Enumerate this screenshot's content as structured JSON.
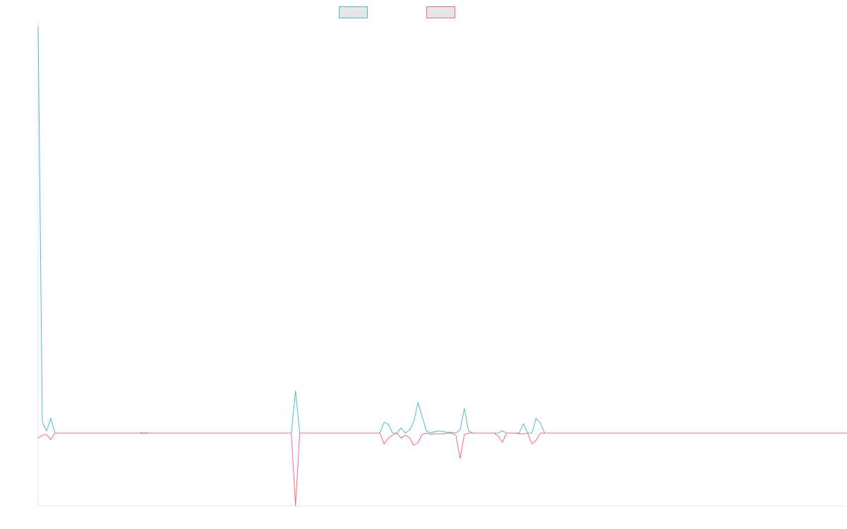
{
  "chart_data": {
    "type": "line",
    "title": "",
    "xlabel": "",
    "ylabel": "",
    "x_count": 192,
    "ylim": [
      -1.0,
      5.6
    ],
    "grid": false,
    "legend_position": "top",
    "series": [
      {
        "name": "",
        "color": "#4bc0c0",
        "fill": "#e6e6e6",
        "values": [
          5.6,
          0.15,
          0.03,
          0.2,
          0,
          0,
          0,
          0,
          0,
          0,
          0,
          0,
          0,
          0,
          0,
          0,
          0,
          0,
          0,
          0,
          0,
          0,
          0,
          0,
          0,
          0.01,
          0,
          0,
          0,
          0,
          0,
          0,
          0,
          0,
          0,
          0,
          0,
          0,
          0,
          0,
          0,
          0,
          0,
          0,
          0,
          0,
          0,
          0,
          0,
          0,
          0,
          0,
          0,
          0,
          0,
          0,
          0,
          0,
          0,
          0,
          0,
          0.58,
          0,
          0,
          0,
          0,
          0,
          0,
          0,
          0,
          0,
          0,
          0,
          0,
          0,
          0,
          0,
          0,
          0,
          0,
          0,
          0,
          0.15,
          0.12,
          0,
          0,
          0.07,
          0,
          0.04,
          0.15,
          0.42,
          0.23,
          0.03,
          0,
          0.02,
          0.03,
          0.02,
          0.01,
          0.01,
          0,
          0.04,
          0.34,
          0.03,
          0,
          0,
          0,
          0,
          0,
          0,
          0,
          0.03,
          0,
          0,
          0,
          0,
          0.13,
          0,
          0,
          0.2,
          0.14,
          0,
          0,
          0,
          0,
          0,
          0,
          0,
          0,
          0,
          0,
          0,
          0,
          0,
          0,
          0,
          0,
          0,
          0,
          0,
          0,
          0,
          0,
          0,
          0,
          0,
          0,
          0,
          0,
          0,
          0,
          0,
          0,
          0,
          0,
          0,
          0,
          0,
          0,
          0,
          0,
          0,
          0,
          0,
          0,
          0,
          0,
          0,
          0,
          0,
          0,
          0,
          0,
          0,
          0,
          0,
          0,
          0,
          0,
          0,
          0,
          0,
          0,
          0,
          0,
          0,
          0,
          0,
          0,
          0,
          0,
          0,
          0,
          0,
          0,
          0,
          0,
          0,
          0,
          0,
          0,
          0,
          0,
          0,
          0
        ]
      },
      {
        "name": "",
        "color": "#ff6384",
        "fill": "#e6e6e6",
        "values": [
          -0.07,
          -0.03,
          -0.02,
          -0.09,
          0,
          0,
          0,
          0,
          0,
          0,
          0,
          0,
          0,
          0,
          0,
          0,
          0,
          0,
          0,
          0,
          0,
          0,
          0,
          0,
          0,
          -0.01,
          0,
          0,
          0,
          0,
          0,
          0,
          0,
          0,
          0,
          0,
          0,
          0,
          0,
          0,
          0,
          0,
          0,
          0,
          0,
          0,
          0,
          0,
          0,
          0,
          0,
          0,
          0,
          0,
          0,
          0,
          0,
          0,
          0,
          0,
          0,
          -1.0,
          0,
          0,
          0,
          0,
          0,
          0,
          0,
          0,
          0,
          0,
          0,
          0,
          0,
          0,
          0,
          0,
          0,
          0,
          0,
          0,
          -0.15,
          -0.07,
          -0.03,
          0,
          -0.07,
          -0.03,
          -0.06,
          -0.17,
          -0.13,
          -0.02,
          0,
          -0.02,
          -0.01,
          -0.01,
          -0.01,
          0,
          0,
          -0.03,
          -0.35,
          -0.02,
          0,
          0,
          0,
          0,
          0,
          0,
          0,
          -0.04,
          -0.13,
          0,
          0,
          0,
          -0.01,
          -0.01,
          0,
          -0.15,
          -0.1,
          0,
          0,
          0,
          0,
          0,
          0,
          0,
          0,
          0,
          0,
          0,
          0,
          0,
          0,
          0,
          0,
          0,
          0,
          0,
          0,
          0,
          0,
          0,
          0,
          0,
          0,
          0,
          0,
          0,
          0,
          0,
          0,
          0,
          0,
          0,
          0,
          0,
          0,
          0,
          0,
          0,
          0,
          0,
          0,
          0,
          0,
          0,
          0,
          0,
          0,
          0,
          0,
          0,
          0,
          0,
          0,
          0,
          0,
          0,
          0,
          0,
          0,
          0,
          0,
          0,
          0,
          0,
          0,
          0,
          0,
          0,
          0,
          0,
          0,
          0,
          0,
          0,
          0,
          0,
          0,
          0,
          0,
          0,
          0,
          0,
          0,
          0,
          0,
          0,
          0,
          0,
          0,
          0,
          0
        ]
      }
    ]
  }
}
